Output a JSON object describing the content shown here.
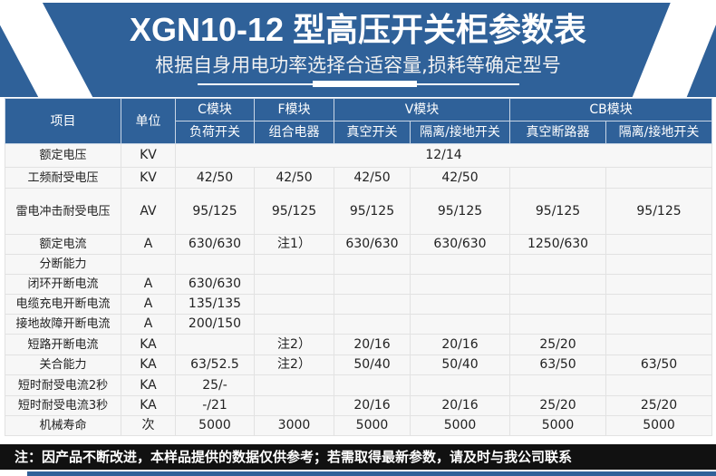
{
  "header": {
    "title": "XGN10-12 型高压开关柜参数表",
    "subtitle": "根据自身用电功率选择合适容量,损耗等确定型号"
  },
  "table": {
    "col_item": "项目",
    "col_unit": "单位",
    "groups": [
      "C模块",
      "F模块",
      "V模块",
      "CB模块"
    ],
    "subheaders": [
      "负荷开关",
      "组合电器",
      "真空开关",
      "隔离/接地开关",
      "真空断路器",
      "隔离/接地开关"
    ],
    "rated_voltage": {
      "item": "额定电压",
      "unit": "KV",
      "value": "12/14"
    },
    "rows": [
      {
        "item": "工频耐受电压",
        "unit": "KV",
        "values": [
          "42/50",
          "42/50",
          "42/50",
          "42/50",
          "",
          ""
        ]
      },
      {
        "item": "雷电冲击耐受电压",
        "unit": "AV",
        "values": [
          "95/125",
          "95/125",
          "95/125",
          "95/125",
          "95/125",
          "95/125"
        ]
      },
      {
        "item": "额定电流",
        "unit": "A",
        "values": [
          "630/630",
          "注1）",
          "630/630",
          "630/630",
          "1250/630",
          ""
        ]
      },
      {
        "item": "分断能力",
        "unit": "",
        "values": [
          "",
          "",
          "",
          "",
          "",
          ""
        ]
      },
      {
        "item": "闭环开断电流",
        "unit": "A",
        "values": [
          "630/630",
          "",
          "",
          "",
          "",
          ""
        ]
      },
      {
        "item": "电缆充电开断电流",
        "unit": "A",
        "values": [
          "135/135",
          "",
          "",
          "",
          "",
          ""
        ]
      },
      {
        "item": "接地故障开断电流",
        "unit": "A",
        "values": [
          "200/150",
          "",
          "",
          "",
          "",
          ""
        ]
      },
      {
        "item": "短路开断电流",
        "unit": "KA",
        "values": [
          "",
          "注2）",
          "20/16",
          "20/16",
          "25/20",
          ""
        ]
      },
      {
        "item": "关合能力",
        "unit": "KA",
        "values": [
          "63/52.5",
          "注2）",
          "50/40",
          "50/40",
          "63/50",
          "63/50"
        ]
      },
      {
        "item": "短时耐受电流2秒",
        "unit": "KA",
        "values": [
          "25/-",
          "",
          "",
          "",
          "",
          ""
        ]
      },
      {
        "item": "短时耐受电流3秒",
        "unit": "KA",
        "values": [
          "-/21",
          "",
          "20/16",
          "20/16",
          "25/20",
          "25/20"
        ]
      },
      {
        "item": "机械寿命",
        "unit": "次",
        "values": [
          "5000",
          "3000",
          "5000",
          "5000",
          "5000",
          "5000"
        ]
      }
    ]
  },
  "footer": {
    "note": "注：因产品不断改进，本样品提供的数据仅供参考；若需取得最新参数，请及时与我公司联系"
  },
  "colors": {
    "brand": "#2f6199",
    "footer_bg": "#111111"
  }
}
